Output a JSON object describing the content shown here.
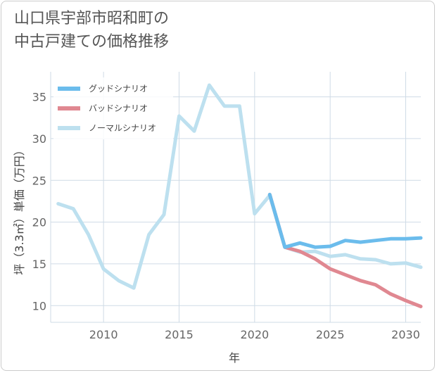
{
  "title_line1": "山口県宇部市昭和町の",
  "title_line2": "中古戸建ての価格推移",
  "chart_data": {
    "type": "line",
    "title": "山口県宇部市昭和町の中古戸建ての価格推移",
    "xlabel": "年",
    "ylabel": "坪（3.3㎡）単価（万円）",
    "xlim": [
      2006.5,
      2031
    ],
    "ylim": [
      8,
      38
    ],
    "xticks": [
      2010,
      2015,
      2020,
      2025,
      2030
    ],
    "yticks": [
      10,
      15,
      20,
      25,
      30,
      35
    ],
    "grid": true,
    "legend_position": "top-left",
    "series": [
      {
        "name": "グッドシナリオ",
        "color": "#6bbcec",
        "x": [
          2021,
          2022,
          2023,
          2024,
          2025,
          2026,
          2027,
          2028,
          2029,
          2030,
          2031
        ],
        "y": [
          23.3,
          17.0,
          17.5,
          17.0,
          17.1,
          17.8,
          17.6,
          17.8,
          18.0,
          18.0,
          18.1
        ]
      },
      {
        "name": "バッドシナリオ",
        "color": "#e08891",
        "x": [
          2021,
          2022,
          2023,
          2024,
          2025,
          2026,
          2027,
          2028,
          2029,
          2030,
          2031
        ],
        "y": [
          23.3,
          17.0,
          16.5,
          15.6,
          14.4,
          13.7,
          13.0,
          12.5,
          11.4,
          10.6,
          9.9
        ]
      },
      {
        "name": "ノーマルシナリオ",
        "color": "#bde0ef",
        "x": [
          2007,
          2008,
          2009,
          2010,
          2011,
          2012,
          2013,
          2014,
          2015,
          2016,
          2017,
          2018,
          2019,
          2020,
          2021,
          2022,
          2023,
          2024,
          2025,
          2026,
          2027,
          2028,
          2029,
          2030,
          2031
        ],
        "y": [
          22.2,
          21.6,
          18.5,
          14.4,
          13.0,
          12.1,
          18.5,
          20.9,
          32.7,
          30.9,
          36.4,
          33.9,
          33.9,
          21.0,
          23.2,
          17.0,
          16.4,
          16.5,
          15.9,
          16.1,
          15.6,
          15.5,
          15.0,
          15.1,
          14.6
        ]
      }
    ]
  }
}
